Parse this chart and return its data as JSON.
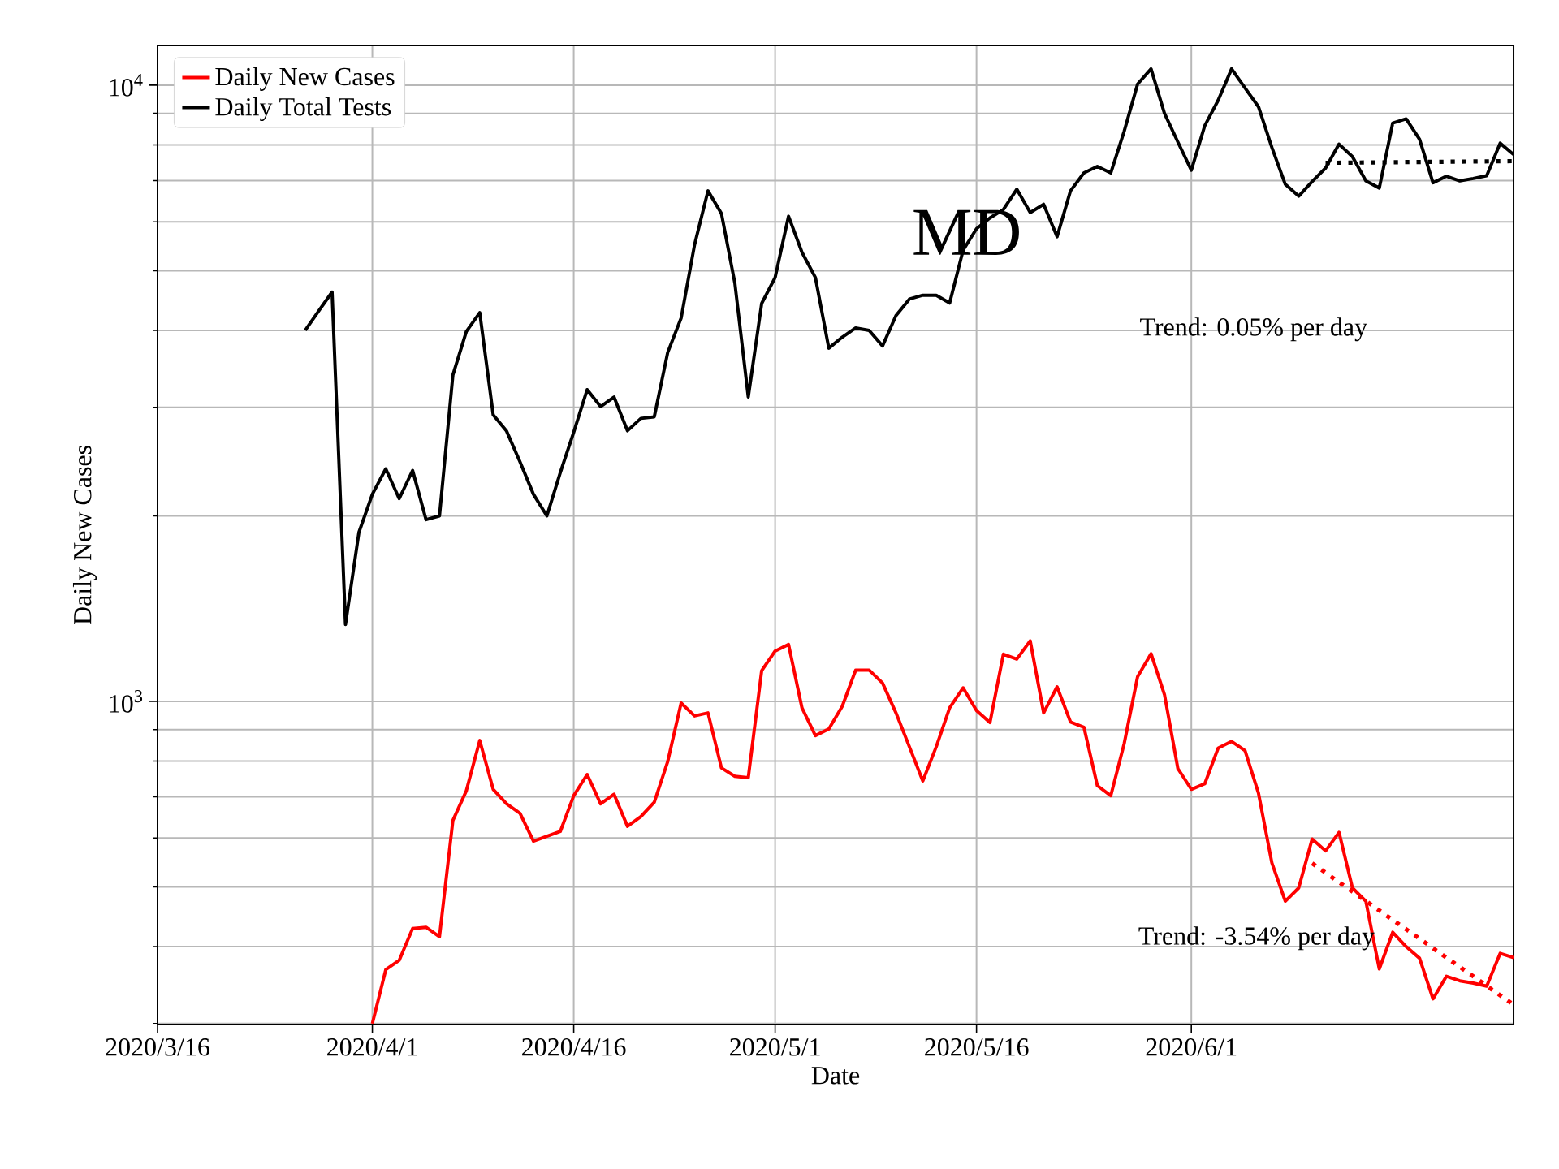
{
  "chart_data": {
    "type": "line",
    "title": "MD",
    "xlabel": "Date",
    "ylabel": "Daily New Cases",
    "log": "y",
    "grid": true,
    "legend": "top left",
    "line_style": "solid",
    "xlim": [
      "2020-03-16",
      "2020-06-25"
    ],
    "ylim": [
      299,
      11600
    ],
    "xticks": [
      {
        "value": "2020-03-16",
        "label": "2020/3/16"
      },
      {
        "value": "2020-04-01",
        "label": "2020/4/1"
      },
      {
        "value": "2020-04-16",
        "label": "2020/4/16"
      },
      {
        "value": "2020-05-01",
        "label": "2020/5/1"
      },
      {
        "value": "2020-05-16",
        "label": "2020/5/16"
      },
      {
        "value": "2020-06-01",
        "label": "2020/6/1"
      }
    ],
    "yticks": [
      {
        "value": 1000,
        "label": "10$^{3}$"
      },
      {
        "value": 10000,
        "label": "10$^{4}$"
      }
    ],
    "x": [
      "2020-03-27",
      "2020-03-28",
      "2020-03-29",
      "2020-03-30",
      "2020-03-31",
      "2020-04-01",
      "2020-04-02",
      "2020-04-03",
      "2020-04-04",
      "2020-04-05",
      "2020-04-06",
      "2020-04-07",
      "2020-04-08",
      "2020-04-09",
      "2020-04-10",
      "2020-04-11",
      "2020-04-12",
      "2020-04-13",
      "2020-04-14",
      "2020-04-15",
      "2020-04-16",
      "2020-04-17",
      "2020-04-18",
      "2020-04-19",
      "2020-04-20",
      "2020-04-21",
      "2020-04-22",
      "2020-04-23",
      "2020-04-24",
      "2020-04-25",
      "2020-04-26",
      "2020-04-27",
      "2020-04-28",
      "2020-04-29",
      "2020-04-30",
      "2020-05-01",
      "2020-05-02",
      "2020-05-03",
      "2020-05-04",
      "2020-05-05",
      "2020-05-06",
      "2020-05-07",
      "2020-05-08",
      "2020-05-09",
      "2020-05-10",
      "2020-05-11",
      "2020-05-12",
      "2020-05-13",
      "2020-05-14",
      "2020-05-15",
      "2020-05-16",
      "2020-05-17",
      "2020-05-18",
      "2020-05-19",
      "2020-05-20",
      "2020-05-21",
      "2020-05-22",
      "2020-05-23",
      "2020-05-24",
      "2020-05-25",
      "2020-05-26",
      "2020-05-27",
      "2020-05-28",
      "2020-05-29",
      "2020-05-30",
      "2020-05-31",
      "2020-06-01",
      "2020-06-02",
      "2020-06-03",
      "2020-06-04",
      "2020-06-05",
      "2020-06-06",
      "2020-06-07",
      "2020-06-08",
      "2020-06-09",
      "2020-06-10",
      "2020-06-11",
      "2020-06-12",
      "2020-06-13",
      "2020-06-14",
      "2020-06-15",
      "2020-06-16",
      "2020-06-17",
      "2020-06-18",
      "2020-06-19",
      "2020-06-20",
      "2020-06-21",
      "2020-06-22",
      "2020-06-23",
      "2020-06-24",
      "2020-06-25"
    ],
    "series": [
      {
        "name": "Daily New Cases",
        "color": "#ff0000",
        "values": [
          null,
          null,
          null,
          null,
          null,
          300,
          367,
          380,
          428,
          430,
          415,
          641,
          716,
          864,
          720,
          682,
          658,
          593,
          604,
          615,
          703,
          761,
          682,
          707,
          627,
          650,
          686,
          799,
          994,
          947,
          958,
          780,
          756,
          752,
          1122,
          1207,
          1237,
          976,
          880,
          902,
          982,
          1124,
          1124,
          1071,
          958,
          844,
          743,
          844,
          976,
          1052,
          966,
          924,
          1193,
          1171,
          1254,
          958,
          1056,
          926,
          908,
          730,
          703,
          854,
          1097,
          1195,
          1026,
          778,
          720,
          735,
          840,
          861,
          832,
          710,
          547,
          474,
          498,
          598,
          572,
          613,
          498,
          474,
          368,
          422,
          400,
          383,
          329,
          358,
          352,
          349,
          345,
          390,
          384
        ]
      },
      {
        "name": "Daily Total Tests",
        "color": "#000000",
        "values": [
          4000,
          4300,
          4616,
          1333,
          1881,
          2168,
          2384,
          2133,
          2370,
          1972,
          2000,
          3386,
          3984,
          4273,
          2917,
          2745,
          2447,
          2168,
          2000,
          2351,
          2735,
          3205,
          3009,
          3118,
          2749,
          2879,
          2896,
          3684,
          4189,
          5508,
          6737,
          6191,
          4774,
          3118,
          4424,
          4873,
          6127,
          5356,
          4873,
          3743,
          3900,
          4037,
          4000,
          3775,
          4227,
          4496,
          4561,
          4561,
          4430,
          5396,
          5847,
          6087,
          6283,
          6778,
          6213,
          6407,
          5676,
          6737,
          7204,
          7383,
          7204,
          8419,
          10042,
          10626,
          9000,
          8085,
          7279,
          8592,
          9450,
          10626,
          9897,
          9225,
          7924,
          6903,
          6606,
          6977,
          7336,
          8021,
          7654,
          6993,
          6809,
          8680,
          8817,
          8169,
          6945,
          7116,
          6993,
          7056,
          7128,
          8050,
          7718
        ]
      },
      {
        "type": "line",
        "color": "#ff0000",
        "line_style": "dotted",
        "x": [
          "2020-06-10",
          "2020-06-25"
        ],
        "values": [
          546,
          322
        ]
      },
      {
        "type": "line",
        "color": "#000000",
        "line_style": "dotted",
        "x": [
          "2020-06-11",
          "2020-06-25"
        ],
        "values": [
          7480,
          7530
        ]
      }
    ],
    "annotations": [
      "Trend: 0.05% per day",
      "Trend: -3.54% per day"
    ]
  }
}
